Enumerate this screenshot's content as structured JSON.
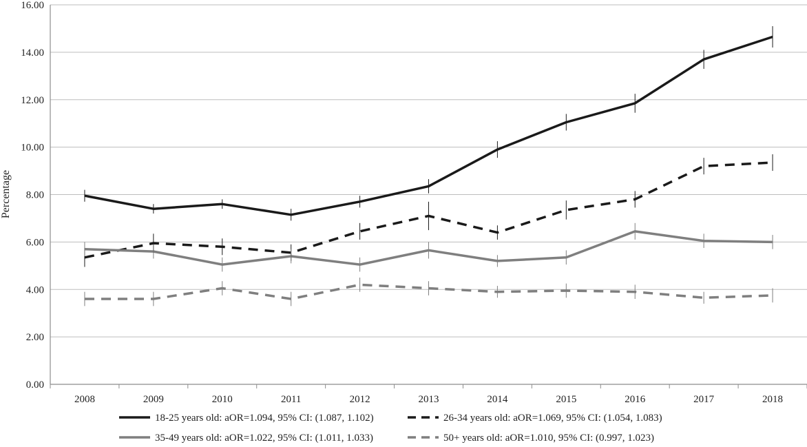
{
  "chart_data": {
    "type": "line",
    "title": "",
    "xlabel": "",
    "ylabel": "Percentage",
    "ylim": [
      0,
      16
    ],
    "yticks": [
      "0.00",
      "2.00",
      "4.00",
      "6.00",
      "8.00",
      "10.00",
      "12.00",
      "14.00",
      "16.00"
    ],
    "grid": true,
    "legend_position": "bottom",
    "categories": [
      "2008",
      "2009",
      "2010",
      "2011",
      "2012",
      "2013",
      "2014",
      "2015",
      "2016",
      "2017",
      "2018"
    ],
    "series": [
      {
        "name": "18-25 years old: aOR=1.094, 95% CI: (1.087, 1.102)",
        "color": "#1a1a1a",
        "dash": "solid",
        "values": [
          7.95,
          7.4,
          7.6,
          7.15,
          7.7,
          8.35,
          9.9,
          11.05,
          11.85,
          13.7,
          14.65
        ],
        "ci": [
          0.25,
          0.2,
          0.2,
          0.25,
          0.25,
          0.3,
          0.35,
          0.35,
          0.4,
          0.4,
          0.45
        ]
      },
      {
        "name": "26-34 years old: aOR=1.069, 95% CI: (1.054, 1.083)",
        "color": "#1a1a1a",
        "dash": "dashed",
        "values": [
          5.35,
          5.95,
          5.8,
          5.55,
          6.45,
          7.1,
          6.4,
          7.35,
          7.8,
          9.2,
          9.35
        ],
        "ci": [
          0.4,
          0.4,
          0.35,
          0.35,
          0.35,
          0.6,
          0.3,
          0.4,
          0.35,
          0.35,
          0.35
        ]
      },
      {
        "name": "35-49 years old: aOR=1.022, 95% CI: (1.011, 1.033)",
        "color": "#7f7f7f",
        "dash": "solid",
        "values": [
          5.7,
          5.6,
          5.05,
          5.4,
          5.05,
          5.65,
          5.2,
          5.35,
          6.45,
          6.05,
          6.0
        ],
        "ci": [
          0.3,
          0.3,
          0.3,
          0.3,
          0.3,
          0.35,
          0.25,
          0.3,
          0.35,
          0.3,
          0.3
        ]
      },
      {
        "name": "50+ years old: aOR=1.010, 95% CI: (0.997, 1.023)",
        "color": "#7f7f7f",
        "dash": "dashed",
        "values": [
          3.6,
          3.6,
          4.05,
          3.6,
          4.2,
          4.05,
          3.9,
          3.95,
          3.9,
          3.65,
          3.75
        ],
        "ci": [
          0.3,
          0.3,
          0.3,
          0.3,
          0.3,
          0.3,
          0.25,
          0.3,
          0.3,
          0.25,
          0.3
        ]
      }
    ]
  }
}
